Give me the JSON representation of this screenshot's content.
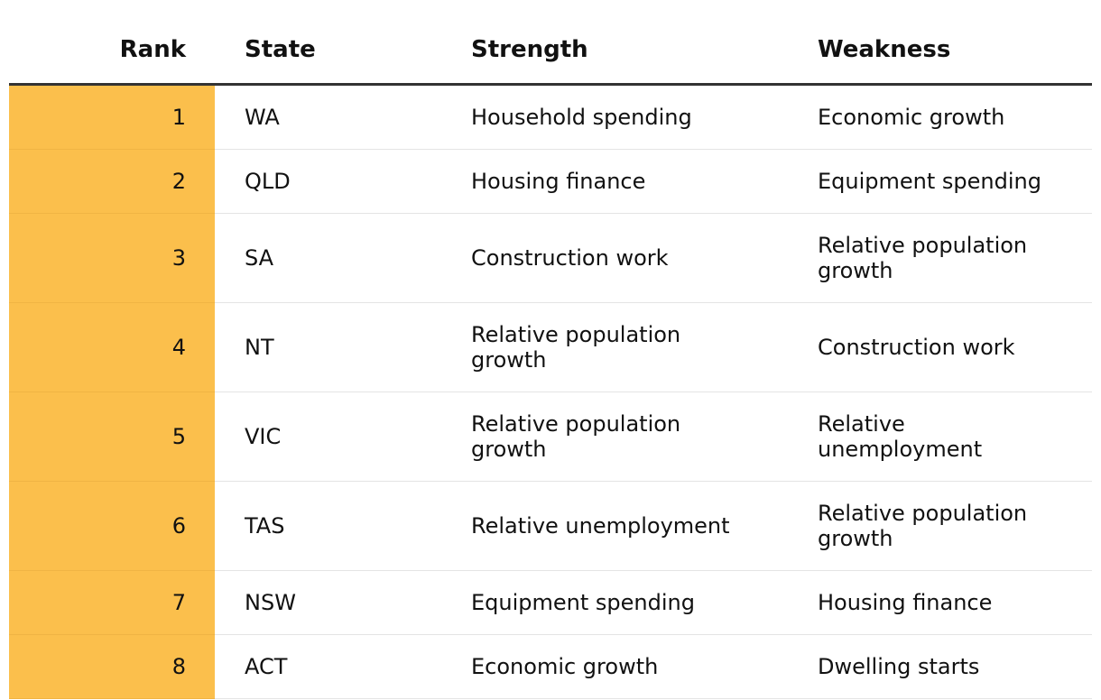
{
  "table": {
    "columns": [
      "Rank",
      "State",
      "Strength",
      "Weakness"
    ],
    "rows": [
      [
        1,
        "WA",
        "Household spending",
        "Economic growth"
      ],
      [
        2,
        "QLD",
        "Housing finance",
        "Equipment spending"
      ],
      [
        3,
        "SA",
        "Construction work",
        "Relative population growth"
      ],
      [
        4,
        "NT",
        "Relative population growth",
        "Construction work"
      ],
      [
        5,
        "VIC",
        "Relative population growth",
        "Relative unemployment"
      ],
      [
        6,
        "TAS",
        "Relative unemployment",
        "Relative population growth"
      ],
      [
        7,
        "NSW",
        "Equipment spending",
        "Housing finance"
      ],
      [
        8,
        "ACT",
        "Economic growth",
        "Dwelling starts"
      ]
    ]
  }
}
